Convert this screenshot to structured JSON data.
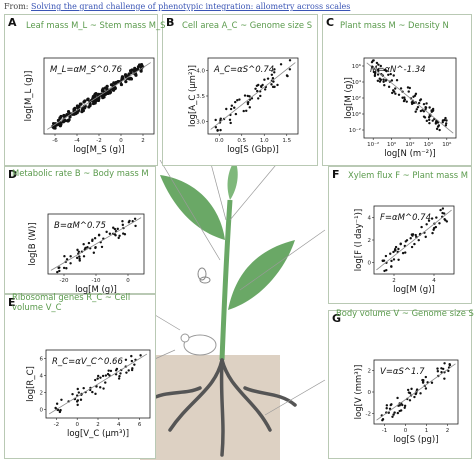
{
  "source": {
    "prefix": "From: ",
    "link": "Solving the grand challenge of phenotypic integration: allometry across scales"
  },
  "colors": {
    "accent": "#5a9a4c",
    "border": "#b9c9b4",
    "soil": "#ddd1c3",
    "leaf": "#6aa866",
    "root": "#555555"
  },
  "panels": [
    {
      "letter": "A",
      "title": "Leaf mass M_L ~ Stem mass M_S",
      "equation": "M_L=αM_S^0.76",
      "xlabel": "log[M_S (g)]",
      "ylabel": "log[M_L (g)]",
      "chart_data": {
        "type": "scatter",
        "xticks": [
          "-6",
          "-4",
          "-2",
          "0",
          "2"
        ],
        "yticks": [],
        "slope": 0.76
      }
    },
    {
      "letter": "B",
      "title": "Cell area A_C ~ Genome size S",
      "equation": "A_C=αS^0.74",
      "xlabel": "log[S (Gbp)]",
      "ylabel": "log[A_C (μm²)]",
      "chart_data": {
        "type": "scatter",
        "xticks": [
          "0.0",
          "0.5",
          "1.0",
          "1.5"
        ],
        "yticks": [
          "3.0",
          "3.5",
          "4.0"
        ],
        "slope": 0.74
      }
    },
    {
      "letter": "C",
      "title": "Plant mass M ~ Density N",
      "equation": "M=αN^-1.34",
      "xlabel": "log[N (m⁻²)]",
      "ylabel": "log[M (g)]",
      "chart_data": {
        "type": "scatter",
        "xticks": [
          "10⁻²",
          "10⁰",
          "10²",
          "10⁴",
          "10⁶"
        ],
        "yticks": [
          "10⁻²",
          "10⁰",
          "10²",
          "10⁴",
          "10⁶"
        ],
        "slope": -1.34
      }
    },
    {
      "letter": "D",
      "title": "Metabolic rate B ~ Body mass M",
      "equation": "B=αM^0.75",
      "xlabel": "log[M (g)]",
      "ylabel": "log[B (W)]",
      "chart_data": {
        "type": "scatter",
        "xticks": [
          "-20",
          "-10",
          "0"
        ],
        "yticks": [],
        "slope": 0.75
      }
    },
    {
      "letter": "E",
      "title": "Ribosomal genes R_C ~ Cell volume V_C",
      "equation": "R_C=αV_C^0.66",
      "xlabel": "log[V_C (μm³)]",
      "ylabel": "log[R_C]",
      "chart_data": {
        "type": "scatter",
        "xticks": [
          "-2",
          "0",
          "2",
          "4",
          "6"
        ],
        "yticks": [
          "0",
          "2",
          "4",
          "6"
        ],
        "slope": 0.66
      }
    },
    {
      "letter": "F",
      "title": "Xylem flux F ~ Plant mass M",
      "equation": "F=αM^0.74",
      "xlabel": "log[M (g)]",
      "ylabel": "log[F (l day⁻¹)]",
      "chart_data": {
        "type": "scatter",
        "xticks": [
          "2",
          "4"
        ],
        "yticks": [
          "0",
          "2",
          "4"
        ],
        "slope": 0.74
      }
    },
    {
      "letter": "G",
      "title": "Body volume V ~ Genome size S",
      "equation": "V=αS^1.7",
      "xlabel": "log[S (pg)]",
      "ylabel": "log[V (mm³)]",
      "chart_data": {
        "type": "scatter",
        "xticks": [
          "-1",
          "0",
          "1",
          "2"
        ],
        "yticks": [
          "-2",
          "0",
          "2"
        ],
        "slope": 1.7
      }
    }
  ]
}
